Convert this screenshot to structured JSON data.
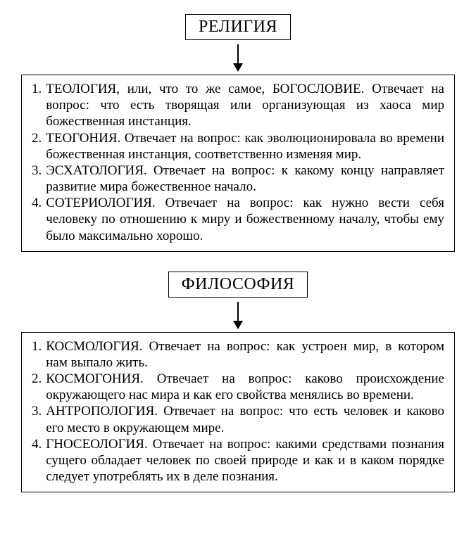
{
  "colors": {
    "background": "#ffffff",
    "text": "#000000",
    "border": "#000000"
  },
  "typography": {
    "font_family": "Times New Roman, serif",
    "title_fontsize": 24,
    "body_fontsize": 19,
    "line_height": 1.22
  },
  "sections": [
    {
      "title": "РЕЛИГИЯ",
      "items": [
        {
          "num": "1.",
          "text": "ТЕОЛОГИЯ, или, что то же самое, БОГОСЛОВИЕ. Отвечает на вопрос: что есть творящая или организующая из хаоса мир божественная инстанция."
        },
        {
          "num": "2.",
          "text": "ТЕОГОНИЯ. Отвечает на вопрос: как эволюционировала во времени божественная инстанция, соответственно изменяя мир."
        },
        {
          "num": "3.",
          "text": "ЭСХАТОЛОГИЯ. Отвечает на вопрос: к какому концу направляет развитие мира божественное начало."
        },
        {
          "num": "4.",
          "text": "СОТЕРИОЛОГИЯ. Отвечает на вопрос: как нужно вести себя человеку по отношению к миру и божественному началу, чтобы ему было максимально хорошо."
        }
      ]
    },
    {
      "title": "ФИЛОСОФИЯ",
      "items": [
        {
          "num": "1.",
          "text": "КОСМОЛОГИЯ. Отвечает на вопрос: как устроен мир, в котором нам выпало жить."
        },
        {
          "num": "2.",
          "text": "КОСМОГОНИЯ. Отвечает на вопрос: каково происхождение окружающего нас мира и как его свойства менялись во времени."
        },
        {
          "num": "3.",
          "text": "АНТРОПОЛОГИЯ. Отвечает на вопрос: что есть человек и каково его место в окружающем мире."
        },
        {
          "num": "4.",
          "text": "ГНОСЕОЛОГИЯ. Отвечает на вопрос: какими средствами познания сущего обладает человек по своей природе и как и в каком порядке следует употреблять их в деле познания."
        }
      ]
    }
  ]
}
